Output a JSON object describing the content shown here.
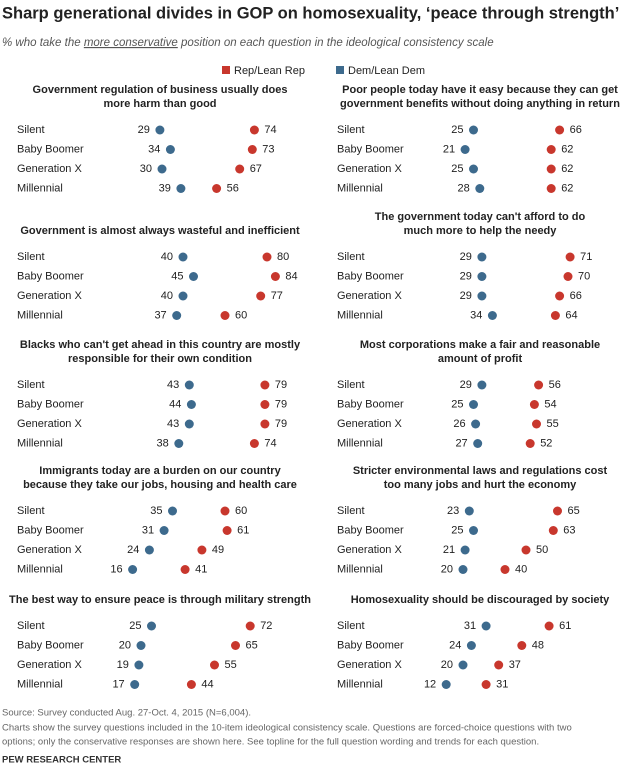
{
  "header": {
    "title": "Sharp generational divides in GOP on homosexuality, ‘peace through strength’",
    "subtitle": [
      "% who take the ",
      "more conservative",
      " position on each question in the ideological consistency scale"
    ]
  },
  "legend": [
    {
      "name": "Rep/Lean Rep",
      "color": "#c8372d"
    },
    {
      "name": "Dem/Lean Dem",
      "color": "#3d6a8d"
    }
  ],
  "chart_data": [
    {
      "type": "dot",
      "title": [
        "Government regulation of business usually does",
        "more harm than good"
      ],
      "categories": [
        "Silent",
        "Baby Boomer",
        "Generation X",
        "Millennial"
      ],
      "series": [
        {
          "values": [
            74,
            73,
            67,
            56
          ]
        },
        {
          "values": [
            29,
            34,
            30,
            39
          ]
        }
      ]
    },
    {
      "type": "dot",
      "title": [
        "Poor people today have it easy because they can get",
        "government benefits without doing anything in return"
      ],
      "categories": [
        "Silent",
        "Baby Boomer",
        "Generation X",
        "Millennial"
      ],
      "series": [
        {
          "values": [
            66,
            62,
            62,
            62
          ]
        },
        {
          "values": [
            25,
            21,
            25,
            28
          ]
        }
      ]
    },
    {
      "type": "dot",
      "title": [
        "Government is almost always wasteful and inefficient"
      ],
      "categories": [
        "Silent",
        "Baby Boomer",
        "Generation X",
        "Millennial"
      ],
      "series": [
        {
          "values": [
            80,
            84,
            77,
            60
          ]
        },
        {
          "values": [
            40,
            45,
            40,
            37
          ]
        }
      ]
    },
    {
      "type": "dot",
      "title": [
        "The government today can't afford to do",
        "much more to help the needy"
      ],
      "categories": [
        "Silent",
        "Baby Boomer",
        "Generation X",
        "Millennial"
      ],
      "series": [
        {
          "values": [
            71,
            70,
            66,
            64
          ]
        },
        {
          "values": [
            29,
            29,
            29,
            34
          ]
        }
      ]
    },
    {
      "type": "dot",
      "title": [
        "Blacks who can't get ahead in this country are mostly",
        "responsible for their own condition"
      ],
      "categories": [
        "Silent",
        "Baby Boomer",
        "Generation X",
        "Millennial"
      ],
      "series": [
        {
          "values": [
            79,
            79,
            79,
            74
          ]
        },
        {
          "values": [
            43,
            44,
            43,
            38
          ]
        }
      ]
    },
    {
      "type": "dot",
      "title": [
        "Most corporations make a fair and reasonable",
        "amount of profit"
      ],
      "categories": [
        "Silent",
        "Baby Boomer",
        "Generation X",
        "Millennial"
      ],
      "series": [
        {
          "values": [
            56,
            54,
            55,
            52
          ]
        },
        {
          "values": [
            29,
            25,
            26,
            27
          ]
        }
      ]
    },
    {
      "type": "dot",
      "title": [
        "Immigrants today are a burden on our country",
        "because they take our jobs, housing and health care"
      ],
      "categories": [
        "Silent",
        "Baby Boomer",
        "Generation X",
        "Millennial"
      ],
      "series": [
        {
          "values": [
            60,
            61,
            49,
            41
          ]
        },
        {
          "values": [
            35,
            31,
            24,
            16
          ]
        }
      ]
    },
    {
      "type": "dot",
      "title": [
        "Stricter environmental laws and regulations cost",
        "too many jobs and hurt the economy"
      ],
      "categories": [
        "Silent",
        "Baby Boomer",
        "Generation X",
        "Millennial"
      ],
      "series": [
        {
          "values": [
            65,
            63,
            50,
            40
          ]
        },
        {
          "values": [
            23,
            25,
            21,
            20
          ]
        }
      ]
    },
    {
      "type": "dot",
      "title": [
        "The best way to ensure peace is through military strength"
      ],
      "categories": [
        "Silent",
        "Baby Boomer",
        "Generation X",
        "Millennial"
      ],
      "series": [
        {
          "values": [
            72,
            65,
            55,
            44
          ]
        },
        {
          "values": [
            25,
            20,
            19,
            17
          ]
        }
      ]
    },
    {
      "type": "dot",
      "title": [
        "Homosexuality should be discouraged by society"
      ],
      "categories": [
        "Silent",
        "Baby Boomer",
        "Generation X",
        "Millennial"
      ],
      "series": [
        {
          "values": [
            61,
            48,
            37,
            31
          ]
        },
        {
          "values": [
            31,
            24,
            20,
            12
          ]
        }
      ]
    }
  ],
  "footer": {
    "source": "Source: Survey conducted Aug. 27-Oct. 4, 2015 (N=6,004).",
    "note": [
      "Charts show the survey questions included in the 10-item ideological consistency scale. Questions are forced-choice questions with two",
      "options; only the conservative responses are shown here. See topline for the full question wording and trends for each question."
    ],
    "brand": "PEW RESEARCH CENTER"
  }
}
